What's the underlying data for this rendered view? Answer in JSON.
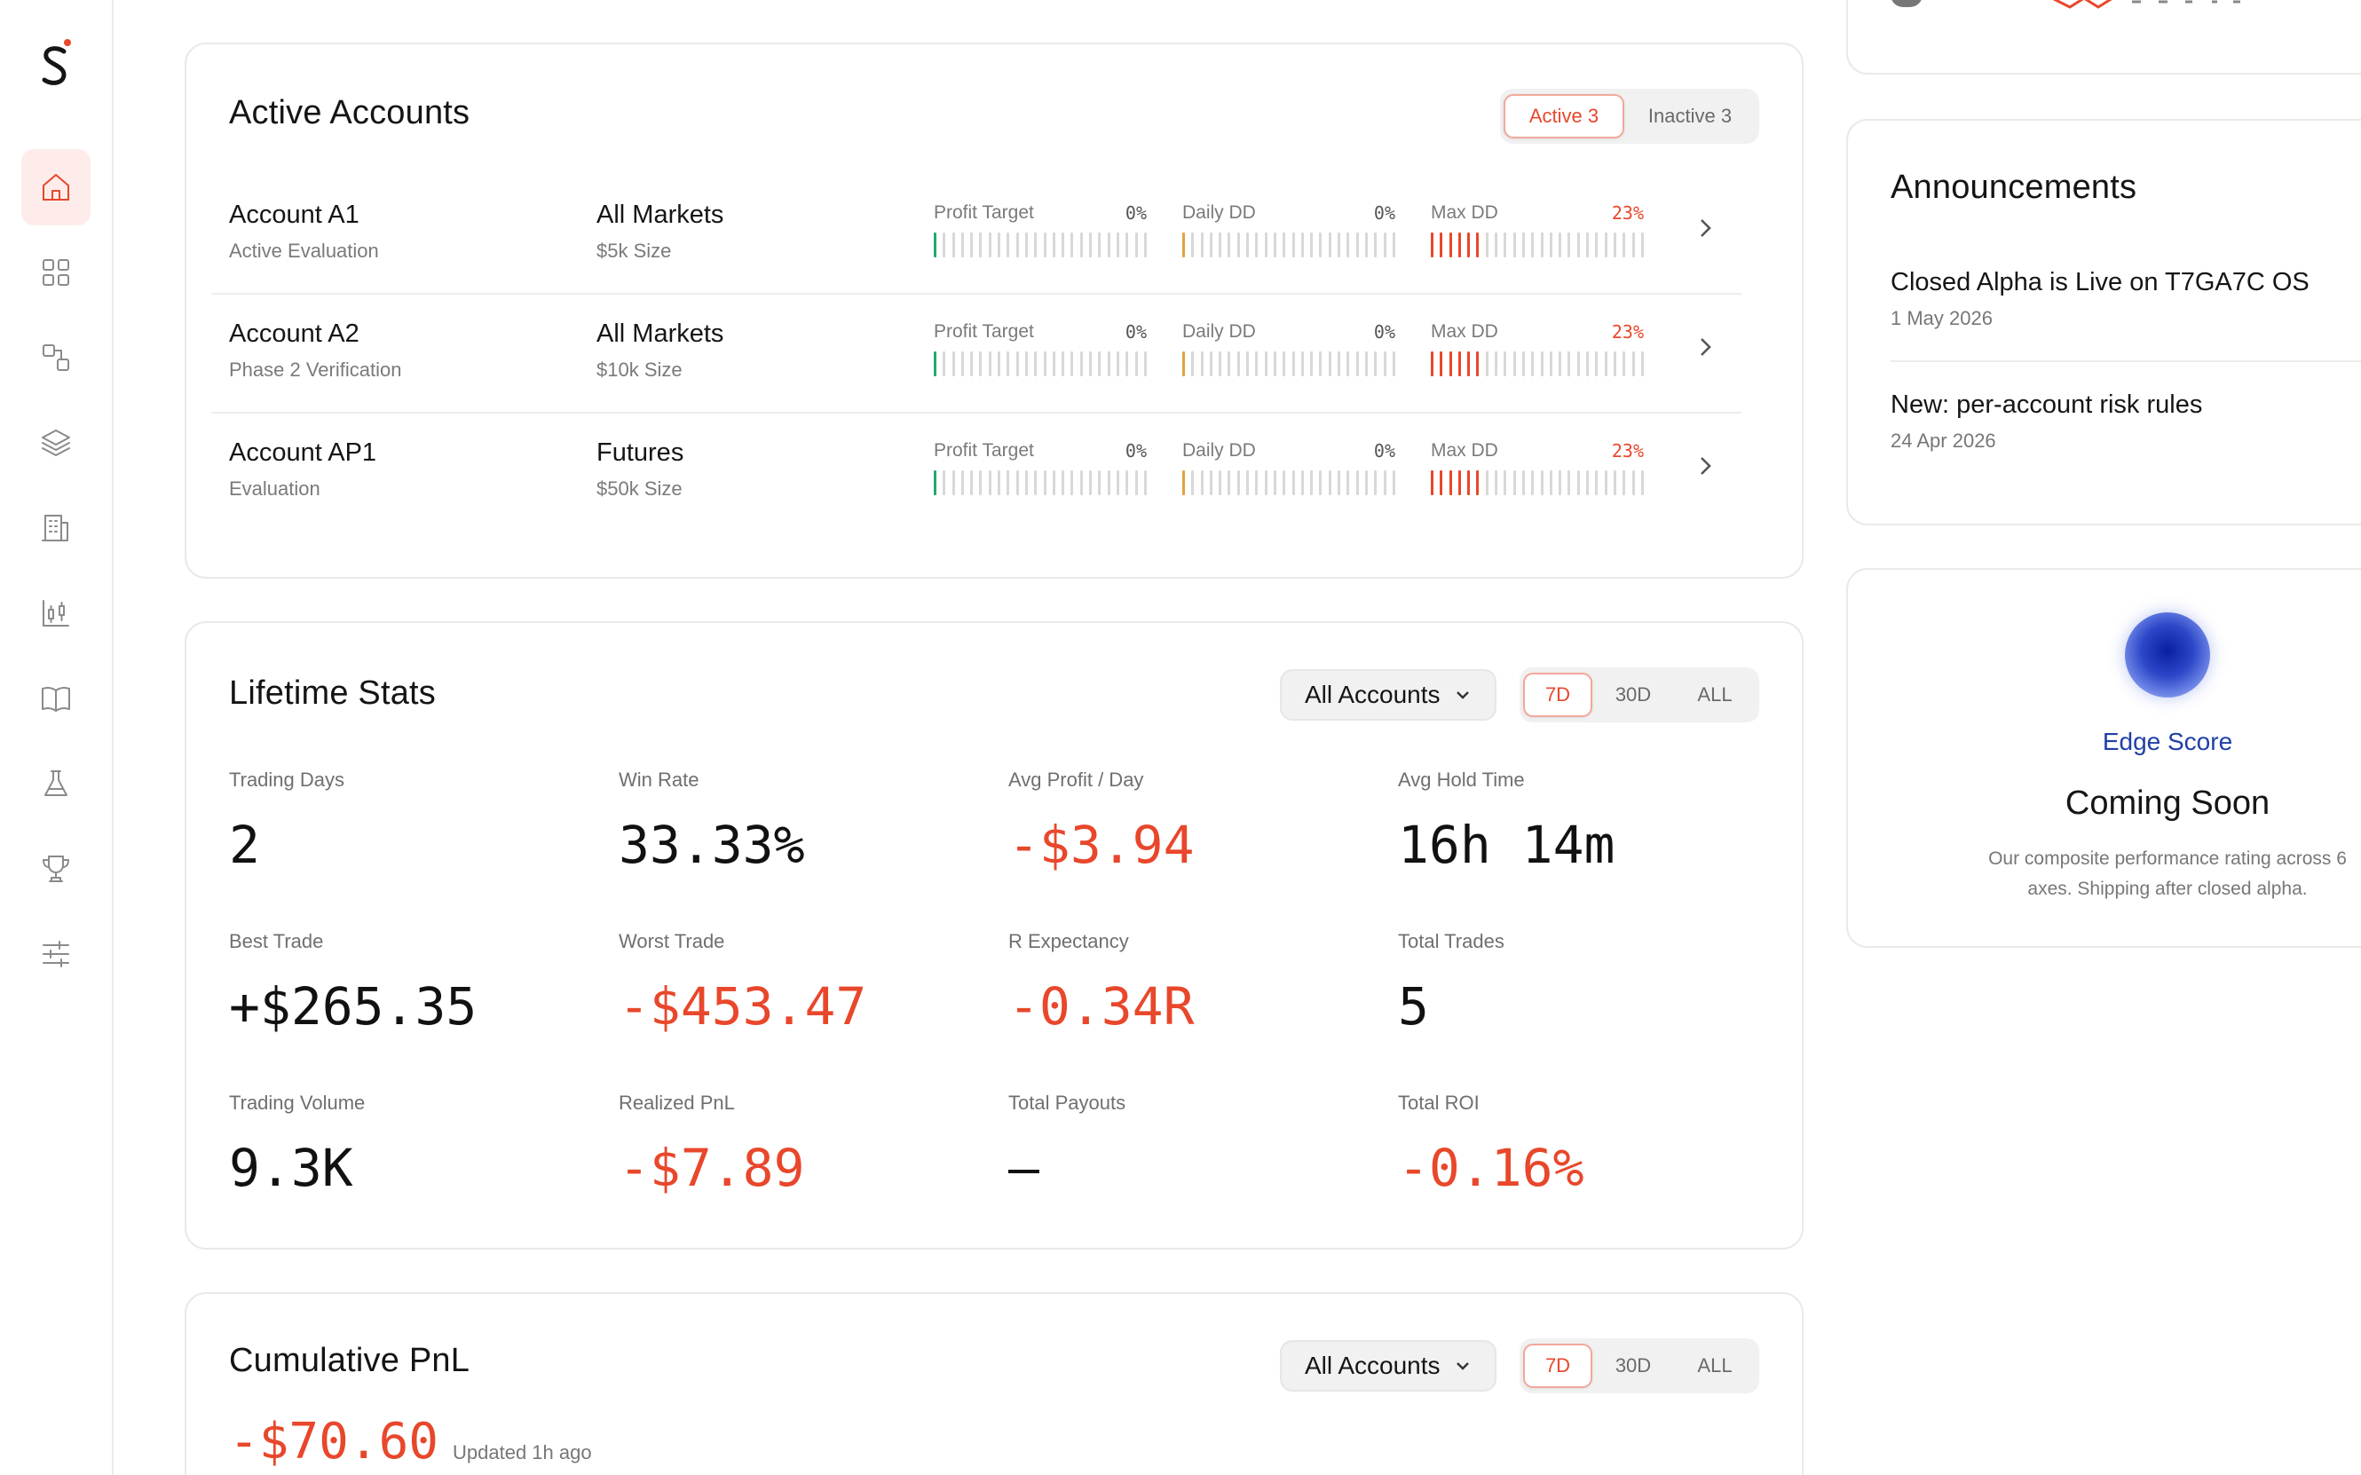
{
  "sidebar": {
    "logo": "logo-mark",
    "items": [
      {
        "name": "home",
        "icon": "home-icon",
        "active": true
      },
      {
        "name": "dashboard",
        "icon": "grid-icon",
        "active": false
      },
      {
        "name": "connections",
        "icon": "connections-icon",
        "active": false
      },
      {
        "name": "layers",
        "icon": "layers-icon",
        "active": false
      },
      {
        "name": "firms",
        "icon": "building-icon",
        "active": false
      },
      {
        "name": "analytics",
        "icon": "candlestick-icon",
        "active": false
      },
      {
        "name": "journal",
        "icon": "book-icon",
        "active": false
      },
      {
        "name": "lab",
        "icon": "flask-icon",
        "active": false
      },
      {
        "name": "competitions",
        "icon": "trophy-icon",
        "active": false
      },
      {
        "name": "settings",
        "icon": "sliders-icon",
        "active": false
      }
    ]
  },
  "colors": {
    "accent": "#e8472b",
    "green": "#1fa971",
    "amber": "#e6a23c",
    "edge_blue": "#1f3fa8"
  },
  "active_accounts": {
    "title": "Active Accounts",
    "tabs": [
      {
        "label": "Active 3",
        "selected": true
      },
      {
        "label": "Inactive 3",
        "selected": false
      }
    ],
    "rows": [
      {
        "name": "Account A1",
        "status": "Active Evaluation",
        "market": "All Markets",
        "size": "$5k Size",
        "profit_target": {
          "label": "Profit Target",
          "value": "0%",
          "fill": 0
        },
        "daily_dd": {
          "label": "Daily DD",
          "value": "0%",
          "fill": 0
        },
        "max_dd": {
          "label": "Max DD",
          "value": "23%",
          "fill": 0.23
        }
      },
      {
        "name": "Account A2",
        "status": "Phase 2 Verification",
        "market": "All Markets",
        "size": "$10k Size",
        "profit_target": {
          "label": "Profit Target",
          "value": "0%",
          "fill": 0
        },
        "daily_dd": {
          "label": "Daily DD",
          "value": "0%",
          "fill": 0
        },
        "max_dd": {
          "label": "Max DD",
          "value": "23%",
          "fill": 0.23
        }
      },
      {
        "name": "Account AP1",
        "status": "Evaluation",
        "market": "Futures",
        "size": "$50k Size",
        "profit_target": {
          "label": "Profit Target",
          "value": "0%",
          "fill": 0
        },
        "daily_dd": {
          "label": "Daily DD",
          "value": "0%",
          "fill": 0
        },
        "max_dd": {
          "label": "Max DD",
          "value": "23%",
          "fill": 0.23
        }
      }
    ]
  },
  "lifetime_stats": {
    "title": "Lifetime Stats",
    "account_filter": "All Accounts",
    "ranges": [
      {
        "label": "7D",
        "selected": true
      },
      {
        "label": "30D",
        "selected": false
      },
      {
        "label": "ALL",
        "selected": false
      }
    ],
    "stats": [
      {
        "label": "Trading Days",
        "value": "2",
        "negative": false
      },
      {
        "label": "Win Rate",
        "value": "33.33%",
        "negative": false
      },
      {
        "label": "Avg Profit / Day",
        "value": "-$3.94",
        "negative": true
      },
      {
        "label": "Avg Hold Time",
        "value": "16h 14m",
        "negative": false
      },
      {
        "label": "Best Trade",
        "value": "+$265.35",
        "negative": false
      },
      {
        "label": "Worst Trade",
        "value": "-$453.47",
        "negative": true
      },
      {
        "label": "R Expectancy",
        "value": "-0.34R",
        "negative": true
      },
      {
        "label": "Total Trades",
        "value": "5",
        "negative": false
      },
      {
        "label": "Trading Volume",
        "value": "9.3K",
        "negative": false
      },
      {
        "label": "Realized PnL",
        "value": "-$7.89",
        "negative": true
      },
      {
        "label": "Total Payouts",
        "value": "—",
        "negative": false
      },
      {
        "label": "Total ROI",
        "value": "-0.16%",
        "negative": true
      }
    ]
  },
  "cumulative_pnl": {
    "title": "Cumulative PnL",
    "account_filter": "All Accounts",
    "ranges": [
      {
        "label": "7D",
        "selected": true
      },
      {
        "label": "30D",
        "selected": false
      },
      {
        "label": "ALL",
        "selected": false
      }
    ],
    "value": "-$70.60",
    "updated": "Updated 1h ago"
  },
  "announcements": {
    "title": "Announcements",
    "items": [
      {
        "title": "Closed Alpha is Live on T7GA7C OS",
        "date": "1 May 2026"
      },
      {
        "title": "New: per-account risk rules",
        "date": "24 Apr 2026"
      }
    ]
  },
  "edge_score": {
    "label": "Edge Score",
    "status": "Coming Soon",
    "description_line1": "Our composite performance rating across 6",
    "description_line2": "axes. Shipping after closed alpha."
  }
}
